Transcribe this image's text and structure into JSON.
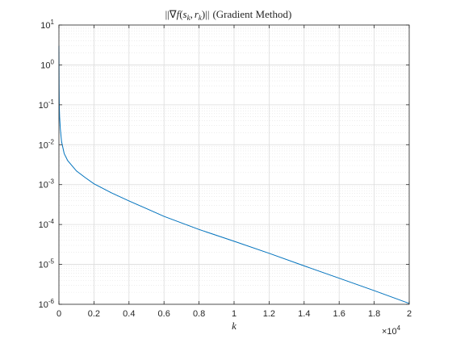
{
  "chart_data": {
    "type": "line",
    "title": "||∇f(s_k, r_k)|| (Gradient Method)",
    "title_parts": {
      "open": "||∇",
      "f": "f",
      "lparen": "(",
      "s": "s",
      "k1": "k",
      "comma": ",",
      "r": "r",
      "k2": "k",
      "close": ")||",
      "method": "(Gradient Method)"
    },
    "xlabel": "k",
    "ylabel": "",
    "x_exponent_base": "×10",
    "x_exponent_power": "4",
    "xlim": [
      0,
      20000
    ],
    "ylim": [
      1e-06,
      10
    ],
    "yscale": "log",
    "grid": true,
    "minor_grid": true,
    "x_ticks": [
      0,
      2000,
      4000,
      6000,
      8000,
      10000,
      12000,
      14000,
      16000,
      18000,
      20000
    ],
    "x_tick_labels": [
      "0",
      "0.2",
      "0.4",
      "0.6",
      "0.8",
      "1",
      "1.2",
      "1.4",
      "1.6",
      "1.8",
      "2"
    ],
    "y_ticks": [
      1e-06,
      1e-05,
      0.0001,
      0.001,
      0.01,
      0.1,
      1,
      10
    ],
    "y_tick_labels": [
      {
        "base": "10",
        "exp": "-6"
      },
      {
        "base": "10",
        "exp": "-5"
      },
      {
        "base": "10",
        "exp": "-4"
      },
      {
        "base": "10",
        "exp": "-3"
      },
      {
        "base": "10",
        "exp": "-2"
      },
      {
        "base": "10",
        "exp": "-1"
      },
      {
        "base": "10",
        "exp": "0"
      },
      {
        "base": "10",
        "exp": "1"
      }
    ],
    "series": [
      {
        "color": "#0072BD",
        "x": [
          0,
          5,
          10,
          20,
          40,
          80,
          150,
          300,
          500,
          1000,
          1500,
          2000,
          3000,
          4000,
          5000,
          6000,
          8000,
          10000,
          12000,
          14000,
          16000,
          18000,
          20000
        ],
        "y": [
          3.0,
          1.0,
          0.3,
          0.1,
          0.05,
          0.025,
          0.012,
          0.006,
          0.004,
          0.0022,
          0.0015,
          0.00105,
          0.00062,
          0.00039,
          0.00025,
          0.00016,
          7.5e-05,
          3.8e-05,
          1.9e-05,
          9.2e-06,
          4.5e-06,
          2.2e-06,
          1.05e-06
        ]
      }
    ]
  }
}
